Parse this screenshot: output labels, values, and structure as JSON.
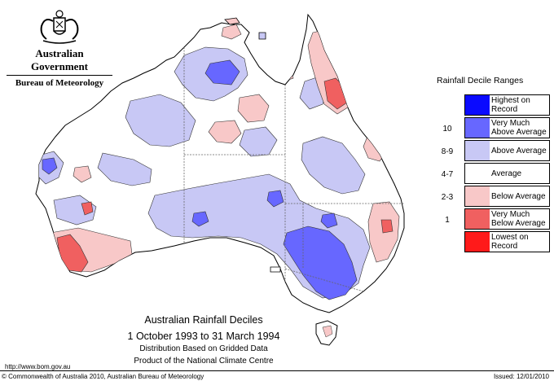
{
  "header": {
    "government": "Australian Government",
    "bureau": "Bureau of Meteorology"
  },
  "legend": {
    "title": "Rainfall Decile Ranges",
    "items": [
      {
        "key": "",
        "label_lines": [
          "Highest on",
          "Record"
        ],
        "color": "#0a0aff"
      },
      {
        "key": "10",
        "label_lines": [
          "Very Much",
          "Above Average"
        ],
        "color": "#6767ff"
      },
      {
        "key": "8-9",
        "label_lines": [
          "Above Average"
        ],
        "color": "#c8c8f5"
      },
      {
        "key": "4-7",
        "label_lines": [
          "Average"
        ],
        "color": "#ffffff"
      },
      {
        "key": "2-3",
        "label_lines": [
          "Below Average"
        ],
        "color": "#f8c8c8"
      },
      {
        "key": "1",
        "label_lines": [
          "Very Much",
          "Below Average"
        ],
        "color": "#f06060"
      },
      {
        "key": "",
        "label_lines": [
          "Lowest on",
          "Record"
        ],
        "color": "#ff1a1a"
      }
    ]
  },
  "map_title": {
    "line1": "Australian Rainfall Deciles",
    "line2": "1 October 1993 to 31 March 1994",
    "line3": "Distribution Based on Gridded Data",
    "line4": "Product of the National Climate Centre"
  },
  "footer": {
    "url": "http://www.bom.gov.au",
    "copyright": "© Commonwealth of Australia 2010, Australian Bureau of Meteorology",
    "issued": "Issued: 12/01/2010"
  }
}
